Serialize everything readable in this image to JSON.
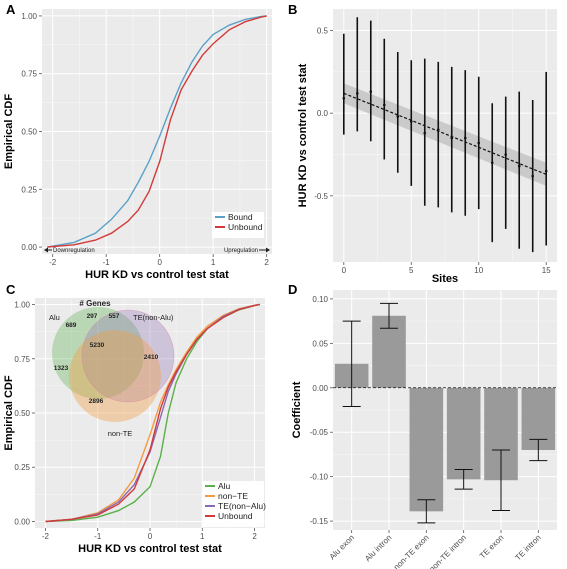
{
  "colors": {
    "bound": "#5aa0c8",
    "unbound": "#d23a3a",
    "alu": "#59b04a",
    "non_te": "#f39a40",
    "te_non_alu": "#8a6bb3",
    "unbound_c": "#d23a3a",
    "bar_fill": "#9a9a9a",
    "panel_bg": "#ebebeb",
    "grid": "#ffffff",
    "ribbon": "#c6c6c6"
  },
  "chart_data": [
    {
      "id": "A",
      "letter": "A",
      "type": "line",
      "xlabel": "HUR KD vs control test stat",
      "ylabel": "Empirical CDF",
      "xlim": [
        -2.2,
        2.1
      ],
      "ylim": [
        -0.03,
        1.03
      ],
      "xticks": [
        -2,
        -1,
        0,
        1,
        2
      ],
      "yticks": [
        0,
        0.25,
        0.5,
        0.75,
        1
      ],
      "ytick_labels": [
        "0.00",
        "0.25",
        "0.50",
        "0.75",
        "1.00"
      ],
      "grid": true,
      "legend_position": "bottom-right",
      "annotations": {
        "left": "Downregulation",
        "right": "Upregulation"
      },
      "series": [
        {
          "name": "Bound",
          "color_key": "bound",
          "x": [
            -2.1,
            -1.6,
            -1.2,
            -0.9,
            -0.6,
            -0.4,
            -0.2,
            0,
            0.2,
            0.4,
            0.6,
            0.8,
            1.0,
            1.3,
            1.6,
            1.9,
            2.0
          ],
          "y": [
            0.0,
            0.02,
            0.06,
            0.12,
            0.2,
            0.28,
            0.37,
            0.48,
            0.6,
            0.71,
            0.8,
            0.87,
            0.92,
            0.96,
            0.985,
            0.998,
            1.0
          ]
        },
        {
          "name": "Unbound",
          "color_key": "unbound",
          "x": [
            -2.1,
            -1.6,
            -1.2,
            -0.9,
            -0.6,
            -0.4,
            -0.2,
            0,
            0.2,
            0.4,
            0.6,
            0.8,
            1.0,
            1.3,
            1.6,
            1.9,
            2.0
          ],
          "y": [
            0.0,
            0.01,
            0.03,
            0.06,
            0.11,
            0.16,
            0.24,
            0.37,
            0.55,
            0.68,
            0.76,
            0.83,
            0.88,
            0.94,
            0.975,
            0.995,
            1.0
          ]
        }
      ]
    },
    {
      "id": "B",
      "letter": "B",
      "type": "scatter",
      "xlabel": "Sites",
      "ylabel": "HUR KD vs control test stat",
      "xlim": [
        -0.8,
        15.8
      ],
      "ylim": [
        -0.9,
        0.63
      ],
      "xticks": [
        0,
        5,
        10,
        15
      ],
      "yticks": [
        -0.5,
        0,
        0.5
      ],
      "ytick_labels": [
        "-0.5",
        "0.0",
        "0.5"
      ],
      "grid": true,
      "points": [
        {
          "x": 0,
          "y": 0.09,
          "lo": -0.13,
          "hi": 0.48
        },
        {
          "x": 1,
          "y": 0.12,
          "lo": -0.11,
          "hi": 0.58
        },
        {
          "x": 2,
          "y": 0.13,
          "lo": -0.17,
          "hi": 0.56
        },
        {
          "x": 3,
          "y": 0.05,
          "lo": -0.28,
          "hi": 0.45
        },
        {
          "x": 4,
          "y": -0.02,
          "lo": -0.36,
          "hi": 0.37
        },
        {
          "x": 5,
          "y": -0.05,
          "lo": -0.44,
          "hi": 0.32
        },
        {
          "x": 6,
          "y": -0.12,
          "lo": -0.56,
          "hi": 0.33
        },
        {
          "x": 7,
          "y": -0.1,
          "lo": -0.57,
          "hi": 0.31
        },
        {
          "x": 8,
          "y": -0.15,
          "lo": -0.6,
          "hi": 0.28
        },
        {
          "x": 9,
          "y": -0.15,
          "lo": -0.62,
          "hi": 0.26
        },
        {
          "x": 10,
          "y": -0.18,
          "lo": -0.58,
          "hi": 0.22
        },
        {
          "x": 11,
          "y": -0.3,
          "lo": -0.78,
          "hi": 0.06
        },
        {
          "x": 12,
          "y": -0.25,
          "lo": -0.7,
          "hi": 0.1
        },
        {
          "x": 13,
          "y": -0.32,
          "lo": -0.82,
          "hi": 0.13
        },
        {
          "x": 14,
          "y": -0.38,
          "lo": -0.84,
          "hi": 0.08
        },
        {
          "x": 15,
          "y": -0.35,
          "lo": -0.8,
          "hi": 0.25
        }
      ],
      "fit": {
        "x0": 0,
        "y0": 0.12,
        "x1": 15,
        "y1": -0.37,
        "band_lo0": 0.06,
        "band_hi0": 0.18,
        "band_lo1": -0.44,
        "band_hi1": -0.3
      }
    },
    {
      "id": "C",
      "letter": "C",
      "type": "line",
      "xlabel": "HUR KD vs control test stat",
      "ylabel": "Empirical CDF",
      "xlim": [
        -2.2,
        2.2
      ],
      "ylim": [
        -0.03,
        1.03
      ],
      "xticks": [
        -2,
        -1,
        0,
        1,
        2
      ],
      "yticks": [
        0,
        0.25,
        0.5,
        0.75,
        1
      ],
      "ytick_labels": [
        "0.00",
        "0.25",
        "0.50",
        "0.75",
        "1.00"
      ],
      "grid": true,
      "legend_position": "bottom-right",
      "series": [
        {
          "name": "Alu",
          "color_key": "alu",
          "x": [
            -2.0,
            -1.5,
            -1.0,
            -0.6,
            -0.3,
            0,
            0.2,
            0.35,
            0.5,
            0.7,
            0.9,
            1.1,
            1.4,
            1.7,
            2.0,
            2.1
          ],
          "y": [
            0.0,
            0.005,
            0.02,
            0.05,
            0.09,
            0.16,
            0.3,
            0.5,
            0.64,
            0.75,
            0.83,
            0.89,
            0.94,
            0.975,
            0.995,
            1.0
          ]
        },
        {
          "name": "non−TE",
          "color_key": "non_te",
          "x": [
            -2.0,
            -1.5,
            -1.0,
            -0.6,
            -0.3,
            0,
            0.2,
            0.35,
            0.5,
            0.7,
            0.9,
            1.1,
            1.4,
            1.7,
            2.0,
            2.1
          ],
          "y": [
            0.0,
            0.01,
            0.04,
            0.1,
            0.2,
            0.4,
            0.55,
            0.63,
            0.7,
            0.78,
            0.85,
            0.9,
            0.95,
            0.98,
            0.997,
            1.0
          ]
        },
        {
          "name": "TE(non−Alu)",
          "color_key": "te_non_alu",
          "x": [
            -2.0,
            -1.5,
            -1.0,
            -0.6,
            -0.3,
            0,
            0.2,
            0.35,
            0.5,
            0.7,
            0.9,
            1.1,
            1.4,
            1.7,
            2.0,
            2.1
          ],
          "y": [
            0.0,
            0.01,
            0.035,
            0.09,
            0.17,
            0.32,
            0.48,
            0.6,
            0.68,
            0.77,
            0.84,
            0.89,
            0.945,
            0.978,
            0.996,
            1.0
          ]
        },
        {
          "name": "Unbound",
          "color_key": "unbound_c",
          "x": [
            -2.0,
            -1.5,
            -1.0,
            -0.6,
            -0.3,
            0,
            0.2,
            0.35,
            0.5,
            0.7,
            0.9,
            1.1,
            1.4,
            1.7,
            2.0,
            2.1
          ],
          "y": [
            0.0,
            0.01,
            0.03,
            0.08,
            0.15,
            0.33,
            0.52,
            0.62,
            0.69,
            0.77,
            0.84,
            0.89,
            0.94,
            0.977,
            0.995,
            1.0
          ]
        }
      ],
      "venn": {
        "title": "# Genes",
        "labels": {
          "alu": "Alu",
          "te_non_alu": "TE(non-Alu)",
          "non_te": "non-TE"
        },
        "counts": {
          "alu_only": "689",
          "alu_te": "297",
          "te_only": "557",
          "center": "5230",
          "te_nonte": "2410",
          "alu_nonte": "1323",
          "nonte_only": "2896"
        }
      }
    },
    {
      "id": "D",
      "letter": "D",
      "type": "bar",
      "xlabel": "",
      "ylabel": "Coefficient",
      "ylim": [
        -0.16,
        0.11
      ],
      "yticks": [
        -0.15,
        -0.1,
        -0.05,
        0,
        0.05,
        0.1
      ],
      "ytick_labels": [
        "-0.15",
        "-0.10",
        "-0.05",
        "0.00",
        "0.05",
        "0.10"
      ],
      "grid": true,
      "categories": [
        "Alu exon",
        "Alu intron",
        "non-TE exon",
        "non-TE intron",
        "TE exon",
        "TE intron"
      ],
      "values": [
        0.027,
        0.081,
        -0.139,
        -0.103,
        -0.104,
        -0.07
      ],
      "err_lo": [
        -0.021,
        0.067,
        -0.152,
        -0.114,
        -0.138,
        -0.082
      ],
      "err_hi": [
        0.075,
        0.095,
        -0.126,
        -0.092,
        -0.07,
        -0.058
      ]
    }
  ]
}
